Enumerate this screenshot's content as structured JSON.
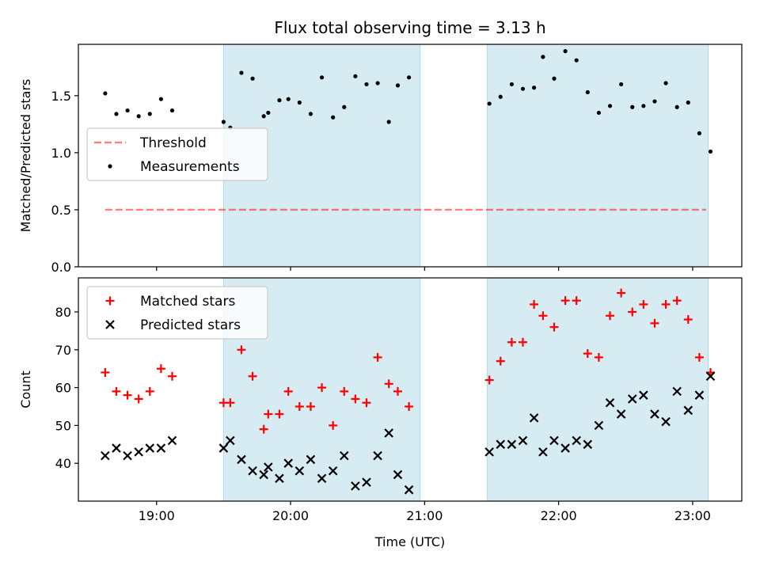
{
  "title": "Flux total observing time = 3.13 h",
  "colors": {
    "shade": "#add8e6",
    "threshold": "#ff0000",
    "measurement": "#000000",
    "matched": "#ff0000",
    "predicted": "#000000"
  },
  "chart_data": [
    {
      "type": "scatter",
      "ylabel": "Matched/Predicted stars",
      "xlim": [
        "18:25",
        "23:22"
      ],
      "ylim": [
        0,
        1.95
      ],
      "x_ticks": [
        "19:00",
        "20:00",
        "21:00",
        "22:00",
        "23:00"
      ],
      "y_ticks": [
        "0.0",
        "0.5",
        "1.0",
        "1.5"
      ],
      "shaded_intervals": [
        [
          "19:30",
          "20:58"
        ],
        [
          "21:28",
          "23:07"
        ]
      ],
      "legend_position": "center-left",
      "threshold": {
        "name": "Threshold",
        "value": 0.5,
        "x_range": [
          "18:37",
          "23:06"
        ]
      },
      "series": [
        {
          "name": "Measurements",
          "points": [
            [
              "18:37",
              1.52
            ],
            [
              "18:42",
              1.34
            ],
            [
              "18:47",
              1.37
            ],
            [
              "18:52",
              1.32
            ],
            [
              "18:57",
              1.34
            ],
            [
              "19:02",
              1.47
            ],
            [
              "19:07",
              1.37
            ],
            [
              "19:30",
              1.27
            ],
            [
              "19:33",
              1.22
            ],
            [
              "19:38",
              1.7
            ],
            [
              "19:43",
              1.65
            ],
            [
              "19:48",
              1.32
            ],
            [
              "19:50",
              1.35
            ],
            [
              "19:55",
              1.46
            ],
            [
              "19:59",
              1.47
            ],
            [
              "20:04",
              1.44
            ],
            [
              "20:09",
              1.34
            ],
            [
              "20:14",
              1.66
            ],
            [
              "20:19",
              1.31
            ],
            [
              "20:24",
              1.4
            ],
            [
              "20:29",
              1.67
            ],
            [
              "20:34",
              1.6
            ],
            [
              "20:39",
              1.61
            ],
            [
              "20:44",
              1.27
            ],
            [
              "20:48",
              1.59
            ],
            [
              "20:53",
              1.66
            ],
            [
              "21:29",
              1.43
            ],
            [
              "21:34",
              1.49
            ],
            [
              "21:39",
              1.6
            ],
            [
              "21:44",
              1.56
            ],
            [
              "21:49",
              1.57
            ],
            [
              "21:53",
              1.84
            ],
            [
              "21:58",
              1.65
            ],
            [
              "22:03",
              1.89
            ],
            [
              "22:08",
              1.81
            ],
            [
              "22:13",
              1.53
            ],
            [
              "22:18",
              1.35
            ],
            [
              "22:23",
              1.41
            ],
            [
              "22:28",
              1.6
            ],
            [
              "22:33",
              1.4
            ],
            [
              "22:38",
              1.41
            ],
            [
              "22:43",
              1.45
            ],
            [
              "22:48",
              1.61
            ],
            [
              "22:53",
              1.4
            ],
            [
              "22:58",
              1.44
            ],
            [
              "23:03",
              1.17
            ],
            [
              "23:08",
              1.01
            ]
          ]
        }
      ]
    },
    {
      "type": "scatter",
      "xlabel": "Time (UTC)",
      "ylabel": "Count",
      "xlim": [
        "18:25",
        "23:22"
      ],
      "ylim": [
        30,
        89
      ],
      "x_ticks": [
        "19:00",
        "20:00",
        "21:00",
        "22:00",
        "23:00"
      ],
      "y_ticks": [
        "40",
        "50",
        "60",
        "70",
        "80"
      ],
      "shaded_intervals": [
        [
          "19:30",
          "20:58"
        ],
        [
          "21:28",
          "23:07"
        ]
      ],
      "legend_position": "top-left",
      "series": [
        {
          "name": "Matched stars",
          "marker": "plus",
          "points": [
            [
              "18:37",
              64
            ],
            [
              "18:42",
              59
            ],
            [
              "18:47",
              58
            ],
            [
              "18:52",
              57
            ],
            [
              "18:57",
              59
            ],
            [
              "19:02",
              65
            ],
            [
              "19:07",
              63
            ],
            [
              "19:30",
              56
            ],
            [
              "19:33",
              56
            ],
            [
              "19:38",
              70
            ],
            [
              "19:43",
              63
            ],
            [
              "19:48",
              49
            ],
            [
              "19:50",
              53
            ],
            [
              "19:55",
              53
            ],
            [
              "19:59",
              59
            ],
            [
              "20:04",
              55
            ],
            [
              "20:09",
              55
            ],
            [
              "20:14",
              60
            ],
            [
              "20:19",
              50
            ],
            [
              "20:24",
              59
            ],
            [
              "20:29",
              57
            ],
            [
              "20:34",
              56
            ],
            [
              "20:39",
              68
            ],
            [
              "20:44",
              61
            ],
            [
              "20:48",
              59
            ],
            [
              "20:53",
              55
            ],
            [
              "21:29",
              62
            ],
            [
              "21:34",
              67
            ],
            [
              "21:39",
              72
            ],
            [
              "21:44",
              72
            ],
            [
              "21:49",
              82
            ],
            [
              "21:53",
              79
            ],
            [
              "21:58",
              76
            ],
            [
              "22:03",
              83
            ],
            [
              "22:08",
              83
            ],
            [
              "22:13",
              69
            ],
            [
              "22:18",
              68
            ],
            [
              "22:23",
              79
            ],
            [
              "22:28",
              85
            ],
            [
              "22:33",
              80
            ],
            [
              "22:38",
              82
            ],
            [
              "22:43",
              77
            ],
            [
              "22:48",
              82
            ],
            [
              "22:53",
              83
            ],
            [
              "22:58",
              78
            ],
            [
              "23:03",
              68
            ],
            [
              "23:08",
              64
            ]
          ]
        },
        {
          "name": "Predicted stars",
          "marker": "x",
          "points": [
            [
              "18:37",
              42
            ],
            [
              "18:42",
              44
            ],
            [
              "18:47",
              42
            ],
            [
              "18:52",
              43
            ],
            [
              "18:57",
              44
            ],
            [
              "19:02",
              44
            ],
            [
              "19:07",
              46
            ],
            [
              "19:30",
              44
            ],
            [
              "19:33",
              46
            ],
            [
              "19:38",
              41
            ],
            [
              "19:43",
              38
            ],
            [
              "19:48",
              37
            ],
            [
              "19:50",
              39
            ],
            [
              "19:55",
              36
            ],
            [
              "19:59",
              40
            ],
            [
              "20:04",
              38
            ],
            [
              "20:09",
              41
            ],
            [
              "20:14",
              36
            ],
            [
              "20:19",
              38
            ],
            [
              "20:24",
              42
            ],
            [
              "20:29",
              34
            ],
            [
              "20:34",
              35
            ],
            [
              "20:39",
              42
            ],
            [
              "20:44",
              48
            ],
            [
              "20:48",
              37
            ],
            [
              "20:53",
              33
            ],
            [
              "21:29",
              43
            ],
            [
              "21:34",
              45
            ],
            [
              "21:39",
              45
            ],
            [
              "21:44",
              46
            ],
            [
              "21:49",
              52
            ],
            [
              "21:53",
              43
            ],
            [
              "21:58",
              46
            ],
            [
              "22:03",
              44
            ],
            [
              "22:08",
              46
            ],
            [
              "22:13",
              45
            ],
            [
              "22:18",
              50
            ],
            [
              "22:23",
              56
            ],
            [
              "22:28",
              53
            ],
            [
              "22:33",
              57
            ],
            [
              "22:38",
              58
            ],
            [
              "22:43",
              53
            ],
            [
              "22:48",
              51
            ],
            [
              "22:53",
              59
            ],
            [
              "22:58",
              54
            ],
            [
              "23:03",
              58
            ],
            [
              "23:08",
              63
            ]
          ]
        }
      ]
    }
  ]
}
